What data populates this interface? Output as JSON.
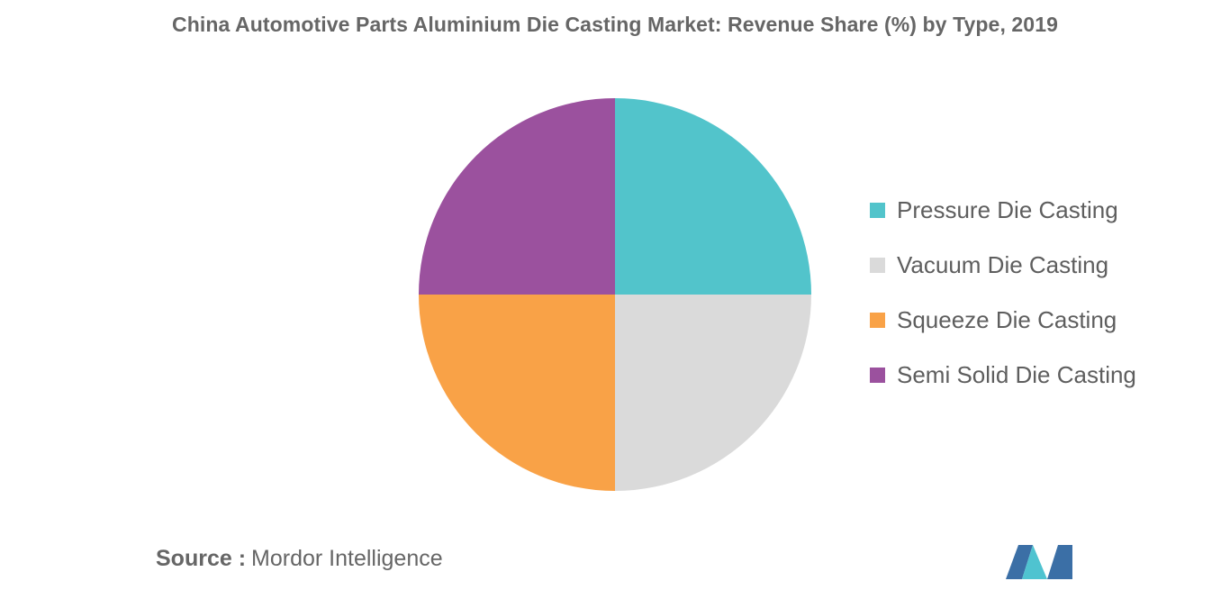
{
  "chart_data": {
    "type": "pie",
    "title": "China Automotive Parts Aluminium Die Casting Market: Revenue Share (%) by Type, 2019",
    "categories": [
      "Pressure Die Casting",
      "Vacuum Die Casting",
      "Squeeze Die Casting",
      "Semi Solid Die Casting"
    ],
    "values": [
      25,
      25,
      25,
      25
    ],
    "colors": [
      "#52c4cb",
      "#dadada",
      "#f9a247",
      "#9b519e"
    ],
    "legend_position": "right",
    "start_angle": "12 o'clock, clockwise"
  },
  "source": {
    "label": "Source :",
    "value": "Mordor Intelligence"
  },
  "logo": {
    "name": "mordor-intelligence-logo",
    "colors": [
      "#3b6fa6",
      "#4fc3d0"
    ]
  }
}
